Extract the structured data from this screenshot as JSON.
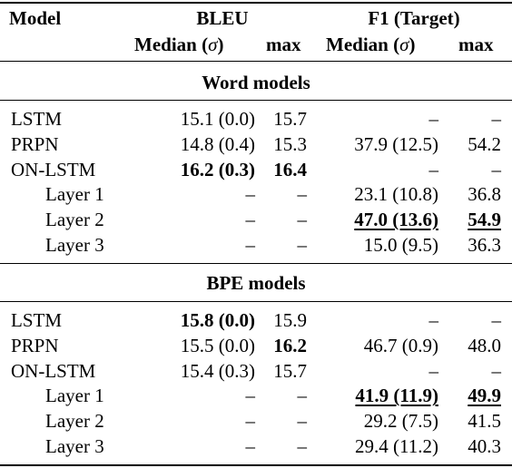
{
  "header": {
    "model": "Model",
    "bleu": "BLEU",
    "f1": "F1 (Target)",
    "median_prefix": "Median (",
    "sigma": "σ",
    "median_suffix": ")",
    "max": "max"
  },
  "sections": [
    {
      "title": "Word models",
      "rows": [
        {
          "model": "LSTM",
          "indent": false,
          "bleu_median": "15.1 (0.0)",
          "bleu_max": "15.7",
          "f1_median": "–",
          "f1_max": "–"
        },
        {
          "model": "PRPN",
          "indent": false,
          "bleu_median": "14.8 (0.4)",
          "bleu_max": "15.3",
          "f1_median": "37.9 (12.5)",
          "f1_max": "54.2"
        },
        {
          "model": "ON-LSTM",
          "indent": false,
          "bleu_median": "16.2 (0.3)",
          "bleu_max": "16.4",
          "f1_median": "–",
          "f1_max": "–",
          "bold": [
            "bleu_median",
            "bleu_max"
          ]
        },
        {
          "model": "Layer 1",
          "indent": true,
          "bleu_median": "–",
          "bleu_max": "–",
          "f1_median": "23.1 (10.8)",
          "f1_max": "36.8"
        },
        {
          "model": "Layer 2",
          "indent": true,
          "bleu_median": "–",
          "bleu_max": "–",
          "f1_median": "47.0 (13.6)",
          "f1_max": "54.9",
          "bold": [
            "f1_median",
            "f1_max"
          ],
          "underline": [
            "f1_median",
            "f1_max"
          ]
        },
        {
          "model": "Layer 3",
          "indent": true,
          "bleu_median": "–",
          "bleu_max": "–",
          "f1_median": "15.0 (9.5)",
          "f1_max": "36.3"
        }
      ]
    },
    {
      "title": "BPE models",
      "rows": [
        {
          "model": "LSTM",
          "indent": false,
          "bleu_median": "15.8 (0.0)",
          "bleu_max": "15.9",
          "f1_median": "–",
          "f1_max": "–",
          "bold": [
            "bleu_median"
          ]
        },
        {
          "model": "PRPN",
          "indent": false,
          "bleu_median": "15.5 (0.0)",
          "bleu_max": "16.2",
          "f1_median": "46.7 (0.9)",
          "f1_max": "48.0",
          "bold": [
            "bleu_max"
          ]
        },
        {
          "model": "ON-LSTM",
          "indent": false,
          "bleu_median": "15.4 (0.3)",
          "bleu_max": "15.7",
          "f1_median": "–",
          "f1_max": "–"
        },
        {
          "model": "Layer 1",
          "indent": true,
          "bleu_median": "–",
          "bleu_max": "–",
          "f1_median": "41.9 (11.9)",
          "f1_max": "49.9",
          "bold": [
            "f1_median",
            "f1_max"
          ],
          "underline": [
            "f1_median",
            "f1_max"
          ]
        },
        {
          "model": "Layer 2",
          "indent": true,
          "bleu_median": "–",
          "bleu_max": "–",
          "f1_median": "29.2 (7.5)",
          "f1_max": "41.5"
        },
        {
          "model": "Layer 3",
          "indent": true,
          "bleu_median": "–",
          "bleu_max": "–",
          "f1_median": "29.4 (11.2)",
          "f1_max": "40.3"
        }
      ]
    }
  ]
}
